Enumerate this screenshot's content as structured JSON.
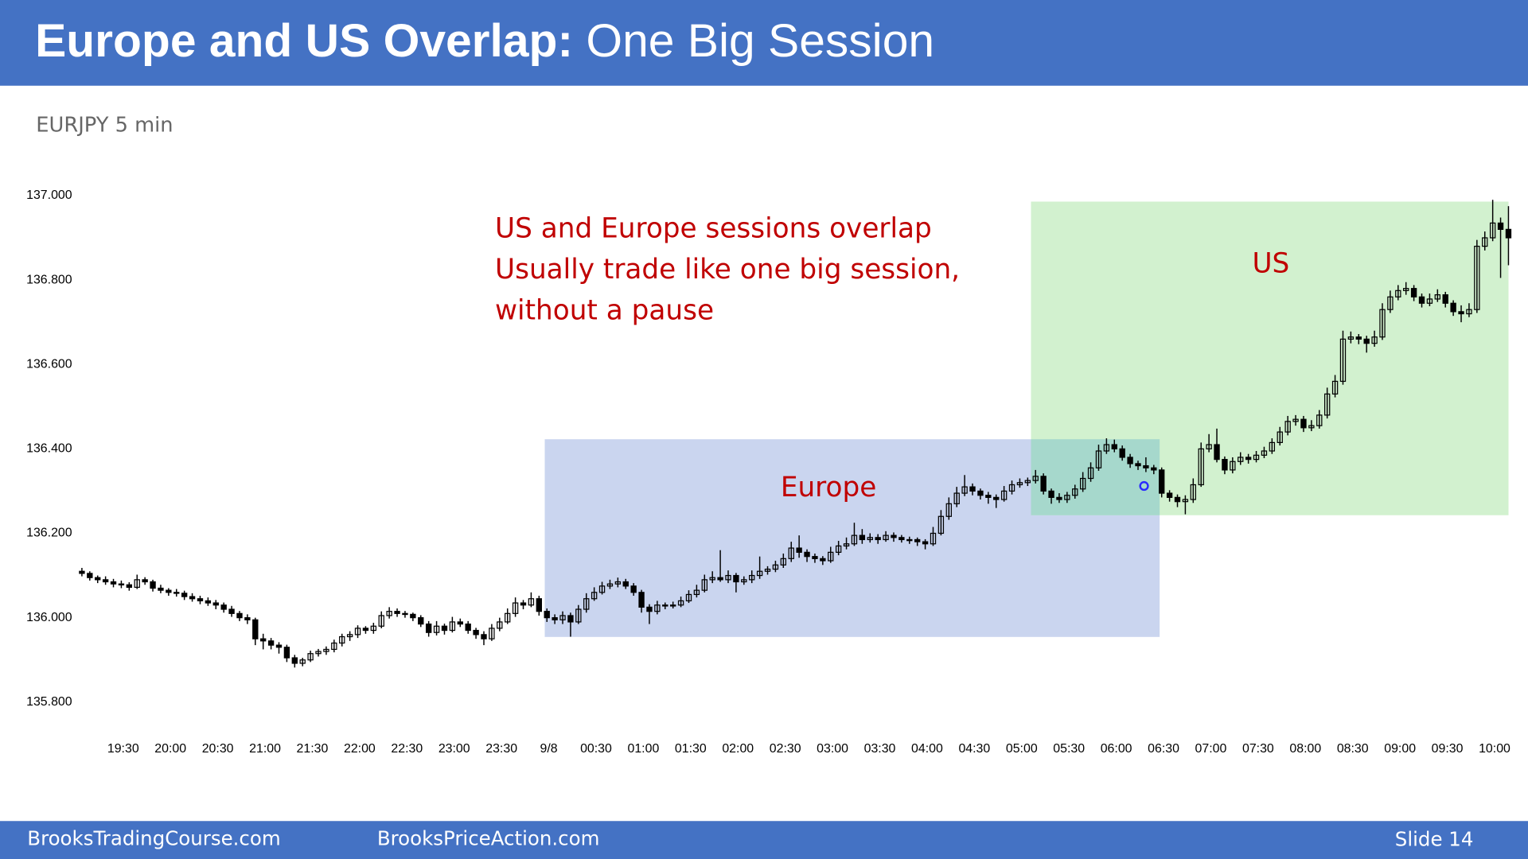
{
  "header": {
    "title_bold": "Europe and US Overlap:",
    "title_rest": "One Big Session"
  },
  "chart_data": {
    "type": "candlestick",
    "title": "EURJPY 5 min",
    "color": "#000000",
    "grid": false,
    "annotations": [
      "US and Europe sessions overlap",
      "Usually trade like one big session,",
      "without a pause"
    ],
    "region_labels": [
      "Europe",
      "US"
    ],
    "ylim": [
      135.756,
      137.025
    ],
    "yticks": [
      {
        "value": 135.8,
        "label": "135.800"
      },
      {
        "value": 136,
        "label": "136.000"
      },
      {
        "value": 136.2,
        "label": "136.200"
      },
      {
        "value": 136.4,
        "label": "136.400"
      },
      {
        "value": 136.6,
        "label": "136.600"
      },
      {
        "value": 136.8,
        "label": "136.800"
      },
      {
        "value": 137,
        "label": "137.000"
      }
    ],
    "xlim": [
      -0.5,
      181.5
    ],
    "xticks": [
      {
        "value": 4,
        "label": "19:30"
      },
      {
        "value": 10,
        "label": "20:00"
      },
      {
        "value": 16,
        "label": "20:30"
      },
      {
        "value": 22,
        "label": "21:00"
      },
      {
        "value": 28,
        "label": "21:30"
      },
      {
        "value": 34,
        "label": "22:00"
      },
      {
        "value": 40,
        "label": "22:30"
      },
      {
        "value": 46,
        "label": "23:00"
      },
      {
        "value": 52,
        "label": "23:30"
      },
      {
        "value": 58,
        "label": "9/8"
      },
      {
        "value": 64,
        "label": "00:30"
      },
      {
        "value": 70,
        "label": "01:00"
      },
      {
        "value": 76,
        "label": "01:30"
      },
      {
        "value": 82,
        "label": "02:00"
      },
      {
        "value": 88,
        "label": "02:30"
      },
      {
        "value": 94,
        "label": "03:00"
      },
      {
        "value": 100,
        "label": "03:30"
      },
      {
        "value": 106,
        "label": "04:00"
      },
      {
        "value": 112,
        "label": "04:30"
      },
      {
        "value": 118,
        "label": "05:00"
      },
      {
        "value": 124,
        "label": "05:30"
      },
      {
        "value": 130,
        "label": "06:00"
      },
      {
        "value": 136,
        "label": "06:30"
      },
      {
        "value": 142,
        "label": "07:00"
      },
      {
        "value": 148,
        "label": "07:30"
      },
      {
        "value": 154,
        "label": "08:00"
      },
      {
        "value": 160,
        "label": "08:30"
      },
      {
        "value": 166,
        "label": "09:00"
      },
      {
        "value": 172,
        "label": "09:30"
      },
      {
        "value": 178,
        "label": "10:00"
      }
    ],
    "ohlc": [
      [
        136.11,
        136.118,
        136.098,
        136.105
      ],
      [
        136.105,
        136.11,
        136.088,
        136.095
      ],
      [
        136.095,
        136.1,
        136.082,
        136.09
      ],
      [
        136.09,
        136.098,
        136.078,
        136.085
      ],
      [
        136.085,
        136.092,
        136.072,
        136.08
      ],
      [
        136.08,
        136.088,
        136.07,
        136.078
      ],
      [
        136.078,
        136.084,
        136.064,
        136.072
      ],
      [
        136.072,
        136.102,
        136.068,
        136.09
      ],
      [
        136.09,
        136.096,
        136.078,
        136.085
      ],
      [
        136.085,
        136.09,
        136.062,
        136.07
      ],
      [
        136.07,
        136.078,
        136.058,
        136.065
      ],
      [
        136.065,
        136.07,
        136.052,
        136.06
      ],
      [
        136.06,
        136.068,
        136.05,
        136.058
      ],
      [
        136.058,
        136.064,
        136.042,
        136.05
      ],
      [
        136.05,
        136.058,
        136.038,
        136.045
      ],
      [
        136.045,
        136.052,
        136.032,
        136.04
      ],
      [
        136.04,
        136.048,
        136.028,
        136.035
      ],
      [
        136.035,
        136.042,
        136.02,
        136.03
      ],
      [
        136.03,
        136.036,
        136.012,
        136.02
      ],
      [
        136.02,
        136.028,
        136.002,
        136.01
      ],
      [
        136.01,
        136.016,
        135.992,
        136.0
      ],
      [
        136.0,
        136.008,
        135.985,
        135.995
      ],
      [
        135.995,
        136.0,
        135.935,
        135.95
      ],
      [
        135.95,
        135.962,
        135.925,
        135.945
      ],
      [
        135.945,
        135.952,
        135.925,
        135.935
      ],
      [
        135.935,
        135.942,
        135.915,
        135.93
      ],
      [
        135.93,
        135.936,
        135.895,
        135.905
      ],
      [
        135.905,
        135.912,
        135.882,
        135.892
      ],
      [
        135.892,
        135.905,
        135.885,
        135.9
      ],
      [
        135.9,
        135.922,
        135.895,
        135.915
      ],
      [
        135.915,
        135.926,
        135.908,
        135.92
      ],
      [
        135.92,
        135.932,
        135.912,
        135.925
      ],
      [
        135.925,
        135.948,
        135.918,
        135.94
      ],
      [
        135.94,
        135.962,
        135.932,
        135.955
      ],
      [
        135.955,
        135.968,
        135.945,
        135.96
      ],
      [
        135.96,
        135.982,
        135.952,
        135.975
      ],
      [
        135.975,
        135.98,
        135.962,
        135.97
      ],
      [
        135.97,
        135.988,
        135.962,
        135.98
      ],
      [
        135.98,
        136.015,
        135.975,
        136.005
      ],
      [
        136.005,
        136.025,
        135.998,
        136.015
      ],
      [
        136.015,
        136.022,
        136.002,
        136.01
      ],
      [
        136.01,
        136.016,
        136.0,
        136.008
      ],
      [
        136.008,
        136.012,
        135.992,
        136.0
      ],
      [
        136.0,
        136.006,
        135.978,
        135.985
      ],
      [
        135.985,
        135.992,
        135.955,
        135.965
      ],
      [
        135.965,
        135.992,
        135.958,
        135.98
      ],
      [
        135.98,
        135.986,
        135.96,
        135.97
      ],
      [
        135.97,
        136.002,
        135.965,
        135.99
      ],
      [
        135.99,
        135.998,
        135.978,
        135.985
      ],
      [
        135.985,
        135.992,
        135.962,
        135.97
      ],
      [
        135.97,
        135.976,
        135.95,
        135.96
      ],
      [
        135.96,
        135.968,
        135.935,
        135.95
      ],
      [
        135.95,
        135.985,
        135.945,
        135.975
      ],
      [
        135.975,
        136.0,
        135.968,
        135.99
      ],
      [
        135.99,
        136.022,
        135.985,
        136.01
      ],
      [
        136.01,
        136.048,
        136.002,
        136.035
      ],
      [
        136.035,
        136.042,
        136.02,
        136.03
      ],
      [
        136.03,
        136.06,
        136.025,
        136.045
      ],
      [
        136.045,
        136.052,
        136.005,
        136.015
      ],
      [
        136.015,
        136.022,
        135.99,
        136.0
      ],
      [
        136.0,
        136.008,
        135.985,
        135.995
      ],
      [
        135.995,
        136.015,
        135.985,
        136.005
      ],
      [
        136.005,
        136.012,
        135.955,
        135.99
      ],
      [
        135.99,
        136.03,
        135.985,
        136.02
      ],
      [
        136.02,
        136.058,
        136.012,
        136.045
      ],
      [
        136.045,
        136.072,
        136.04,
        136.06
      ],
      [
        136.06,
        136.085,
        136.055,
        136.075
      ],
      [
        136.075,
        136.09,
        136.068,
        136.08
      ],
      [
        136.08,
        136.095,
        136.072,
        136.085
      ],
      [
        136.085,
        136.092,
        136.068,
        136.075
      ],
      [
        136.075,
        136.082,
        136.052,
        136.06
      ],
      [
        136.06,
        136.066,
        136.012,
        136.025
      ],
      [
        136.025,
        136.032,
        135.985,
        136.015
      ],
      [
        136.015,
        136.04,
        136.008,
        136.03
      ],
      [
        136.03,
        136.036,
        136.02,
        136.028
      ],
      [
        136.028,
        136.038,
        136.022,
        136.03
      ],
      [
        136.03,
        136.05,
        136.025,
        136.04
      ],
      [
        136.04,
        136.065,
        136.035,
        136.055
      ],
      [
        136.055,
        136.078,
        136.048,
        136.065
      ],
      [
        136.065,
        136.102,
        136.06,
        136.09
      ],
      [
        136.09,
        136.11,
        136.082,
        136.095
      ],
      [
        136.095,
        136.16,
        136.085,
        136.09
      ],
      [
        136.09,
        136.112,
        136.082,
        136.1
      ],
      [
        136.1,
        136.106,
        136.06,
        136.085
      ],
      [
        136.085,
        136.098,
        136.078,
        136.09
      ],
      [
        136.09,
        136.112,
        136.082,
        136.1
      ],
      [
        136.1,
        136.145,
        136.092,
        136.11
      ],
      [
        136.11,
        136.122,
        136.102,
        136.115
      ],
      [
        136.115,
        136.135,
        136.108,
        136.125
      ],
      [
        136.125,
        136.152,
        136.118,
        136.14
      ],
      [
        136.14,
        136.18,
        136.132,
        136.165
      ],
      [
        136.165,
        136.195,
        136.142,
        136.155
      ],
      [
        136.155,
        136.162,
        136.132,
        136.145
      ],
      [
        136.145,
        136.152,
        136.13,
        136.14
      ],
      [
        136.14,
        136.146,
        136.125,
        136.135
      ],
      [
        136.135,
        136.168,
        136.13,
        136.155
      ],
      [
        136.155,
        136.182,
        136.148,
        136.17
      ],
      [
        136.17,
        136.19,
        136.162,
        136.175
      ],
      [
        136.175,
        136.225,
        136.17,
        136.195
      ],
      [
        136.195,
        136.21,
        136.175,
        136.185
      ],
      [
        136.185,
        136.2,
        136.178,
        136.19
      ],
      [
        136.19,
        136.198,
        136.175,
        136.185
      ],
      [
        136.185,
        136.205,
        136.18,
        136.195
      ],
      [
        136.195,
        136.202,
        136.18,
        136.19
      ],
      [
        136.19,
        136.196,
        136.178,
        136.185
      ],
      [
        136.185,
        136.192,
        136.175,
        136.185
      ],
      [
        136.185,
        136.19,
        136.17,
        136.18
      ],
      [
        136.18,
        136.186,
        136.162,
        136.175
      ],
      [
        136.175,
        136.215,
        136.17,
        136.2
      ],
      [
        136.2,
        136.255,
        136.195,
        136.24
      ],
      [
        136.24,
        136.285,
        136.232,
        136.27
      ],
      [
        136.27,
        136.31,
        136.262,
        136.295
      ],
      [
        136.295,
        136.338,
        136.288,
        136.31
      ],
      [
        136.31,
        136.318,
        136.29,
        136.3
      ],
      [
        136.3,
        136.306,
        136.28,
        136.29
      ],
      [
        136.29,
        136.298,
        136.27,
        136.285
      ],
      [
        136.285,
        136.292,
        136.26,
        136.28
      ],
      [
        136.28,
        136.312,
        136.275,
        136.3
      ],
      [
        136.3,
        136.325,
        136.292,
        136.315
      ],
      [
        136.315,
        136.33,
        136.308,
        136.32
      ],
      [
        136.32,
        136.332,
        136.312,
        136.325
      ],
      [
        136.325,
        136.35,
        136.318,
        136.335
      ],
      [
        136.335,
        136.342,
        136.292,
        136.3
      ],
      [
        136.3,
        136.306,
        136.27,
        136.285
      ],
      [
        136.285,
        136.295,
        136.272,
        136.28
      ],
      [
        136.28,
        136.298,
        136.272,
        136.29
      ],
      [
        136.29,
        136.315,
        136.282,
        136.305
      ],
      [
        136.305,
        136.345,
        136.298,
        136.33
      ],
      [
        136.33,
        136.368,
        136.322,
        136.355
      ],
      [
        136.355,
        136.41,
        136.348,
        136.395
      ],
      [
        136.395,
        136.425,
        136.388,
        136.41
      ],
      [
        136.41,
        136.422,
        136.392,
        136.4
      ],
      [
        136.4,
        136.408,
        136.372,
        136.38
      ],
      [
        136.38,
        136.388,
        136.355,
        136.365
      ],
      [
        136.365,
        136.372,
        136.35,
        136.36
      ],
      [
        136.36,
        136.38,
        136.345,
        136.355
      ],
      [
        136.355,
        136.362,
        136.34,
        136.35
      ],
      [
        136.35,
        136.356,
        136.285,
        136.295
      ],
      [
        136.295,
        136.302,
        136.275,
        136.285
      ],
      [
        136.285,
        136.292,
        136.262,
        136.275
      ],
      [
        136.275,
        136.29,
        136.245,
        136.28
      ],
      [
        136.28,
        136.33,
        136.272,
        136.315
      ],
      [
        136.315,
        136.415,
        136.31,
        136.4
      ],
      [
        136.4,
        136.435,
        136.392,
        136.41
      ],
      [
        136.41,
        136.448,
        136.368,
        136.375
      ],
      [
        136.375,
        136.382,
        136.34,
        136.35
      ],
      [
        136.35,
        136.38,
        136.342,
        136.37
      ],
      [
        136.37,
        136.392,
        136.362,
        136.38
      ],
      [
        136.38,
        136.388,
        136.365,
        136.375
      ],
      [
        136.375,
        136.395,
        136.368,
        136.385
      ],
      [
        136.385,
        136.405,
        136.378,
        136.395
      ],
      [
        136.395,
        136.425,
        136.388,
        136.415
      ],
      [
        136.415,
        136.452,
        136.408,
        136.44
      ],
      [
        136.44,
        136.478,
        136.432,
        136.465
      ],
      [
        136.465,
        136.48,
        136.455,
        136.47
      ],
      [
        136.47,
        136.478,
        136.44,
        136.45
      ],
      [
        136.45,
        136.468,
        136.442,
        136.455
      ],
      [
        136.455,
        136.492,
        136.448,
        136.48
      ],
      [
        136.48,
        136.545,
        136.472,
        136.53
      ],
      [
        136.53,
        136.575,
        136.522,
        136.56
      ],
      [
        136.56,
        136.68,
        136.552,
        136.66
      ],
      [
        136.66,
        136.678,
        136.65,
        136.665
      ],
      [
        136.665,
        136.672,
        136.648,
        136.66
      ],
      [
        136.66,
        136.668,
        136.628,
        136.65
      ],
      [
        136.65,
        136.68,
        136.642,
        136.665
      ],
      [
        136.665,
        136.745,
        136.658,
        136.73
      ],
      [
        136.73,
        136.775,
        136.722,
        136.76
      ],
      [
        136.76,
        136.788,
        136.752,
        136.775
      ],
      [
        136.775,
        136.795,
        136.765,
        136.78
      ],
      [
        136.78,
        136.788,
        136.75,
        136.76
      ],
      [
        136.76,
        136.768,
        136.735,
        136.745
      ],
      [
        136.745,
        136.768,
        136.738,
        136.755
      ],
      [
        136.755,
        136.778,
        136.748,
        136.765
      ],
      [
        136.765,
        136.772,
        136.735,
        136.745
      ],
      [
        136.745,
        136.752,
        136.715,
        136.725
      ],
      [
        136.725,
        136.74,
        136.7,
        136.72
      ],
      [
        136.72,
        136.745,
        136.712,
        136.73
      ],
      [
        136.73,
        136.895,
        136.722,
        136.88
      ],
      [
        136.88,
        136.915,
        136.87,
        136.9
      ],
      [
        136.9,
        136.99,
        136.892,
        136.935
      ],
      [
        136.935,
        136.948,
        136.805,
        136.92
      ],
      [
        136.92,
        136.975,
        136.835,
        136.9
      ]
    ]
  },
  "footer": {
    "left": "BrooksTradingCourse.com",
    "middle": "BrooksPriceAction.com",
    "slide": "Slide  14"
  }
}
